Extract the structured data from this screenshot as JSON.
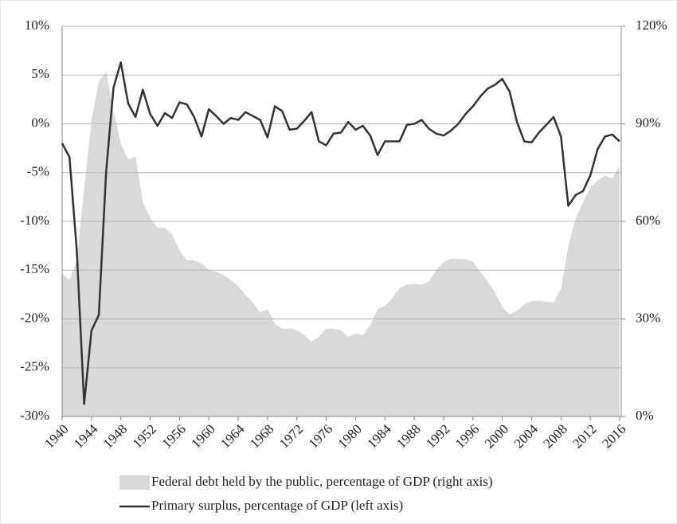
{
  "chart_data": {
    "type": "line",
    "x": [
      1940,
      1941,
      1942,
      1943,
      1944,
      1945,
      1946,
      1947,
      1948,
      1949,
      1950,
      1951,
      1952,
      1953,
      1954,
      1955,
      1956,
      1957,
      1958,
      1959,
      1960,
      1961,
      1962,
      1963,
      1964,
      1965,
      1966,
      1967,
      1968,
      1969,
      1970,
      1971,
      1972,
      1973,
      1974,
      1975,
      1976,
      1977,
      1978,
      1979,
      1980,
      1981,
      1982,
      1983,
      1984,
      1985,
      1986,
      1987,
      1988,
      1989,
      1990,
      1991,
      1992,
      1993,
      1994,
      1995,
      1996,
      1997,
      1998,
      1999,
      2000,
      2001,
      2002,
      2003,
      2004,
      2005,
      2006,
      2007,
      2008,
      2009,
      2010,
      2011,
      2012,
      2013,
      2014,
      2015,
      2016
    ],
    "xlim": [
      1940,
      2016
    ],
    "xticks": [
      1940,
      1944,
      1948,
      1952,
      1956,
      1960,
      1964,
      1968,
      1972,
      1976,
      1980,
      1984,
      1988,
      1992,
      1996,
      2000,
      2004,
      2008,
      2012,
      2016
    ],
    "ylim": [
      -30,
      10
    ],
    "yticks": [
      {
        "value": -30,
        "label": "-30%"
      },
      {
        "value": -25,
        "label": "-25%"
      },
      {
        "value": -20,
        "label": "-20%"
      },
      {
        "value": -15,
        "label": "-15%"
      },
      {
        "value": -10,
        "label": "-10%"
      },
      {
        "value": -5,
        "label": "-5%"
      },
      {
        "value": 0,
        "label": "0%"
      },
      {
        "value": 5,
        "label": "5%"
      },
      {
        "value": 10,
        "label": "10%"
      }
    ],
    "y2lim": [
      0,
      120
    ],
    "y2ticks": [
      {
        "value": 0,
        "label": "0%"
      },
      {
        "value": 30,
        "label": "30%"
      },
      {
        "value": 60,
        "label": "60%"
      },
      {
        "value": 90,
        "label": "90%"
      },
      {
        "value": 120,
        "label": "120%"
      }
    ],
    "grid": true,
    "legend": "bottom",
    "series": [
      {
        "name": "Federal debt held by the public, percentage of GDP (right axis)",
        "color": "#d9d9d9",
        "style": "area",
        "axis": "y2",
        "values": [
          44,
          42,
          48,
          70,
          91,
          103,
          106,
          94,
          84,
          79,
          80,
          66,
          61,
          58,
          58,
          56,
          51,
          48,
          48,
          47,
          45,
          44.5,
          43.5,
          42,
          40,
          37.5,
          35,
          32,
          33,
          28.5,
          27,
          27,
          26.5,
          25,
          23,
          24.5,
          27,
          27,
          26.5,
          24.5,
          25.5,
          25,
          28,
          33,
          34,
          36.5,
          39.5,
          40.6,
          40.8,
          40.5,
          41.5,
          45,
          47.6,
          48.5,
          48.5,
          48.4,
          47.5,
          44.5,
          41.6,
          38.2,
          33.6,
          31.4,
          32.5,
          34.5,
          35.5,
          35.6,
          35.3,
          35.1,
          39.3,
          52.3,
          60.9,
          65.9,
          70.4,
          72.6,
          74.1,
          73.3,
          77
        ]
      },
      {
        "name": "Primary surplus, percentage of GDP (left axis)",
        "color": "#333333",
        "style": "line",
        "values": [
          -2.0,
          -3.4,
          -13.0,
          -28.7,
          -21.2,
          -19.6,
          -4.9,
          3.7,
          6.3,
          2.1,
          0.7,
          3.5,
          1.0,
          -0.2,
          1.1,
          0.6,
          2.2,
          2.0,
          0.7,
          -1.3,
          1.5,
          0.8,
          0.0,
          0.6,
          0.4,
          1.2,
          0.8,
          0.4,
          -1.4,
          1.8,
          1.3,
          -0.6,
          -0.5,
          0.3,
          1.2,
          -1.8,
          -2.2,
          -1.0,
          -0.9,
          0.2,
          -0.6,
          -0.2,
          -1.2,
          -3.2,
          -1.8,
          -1.8,
          -1.8,
          -0.1,
          0.0,
          0.4,
          -0.5,
          -1.0,
          -1.2,
          -0.7,
          0.0,
          1.0,
          1.8,
          2.8,
          3.6,
          4.0,
          4.6,
          3.3,
          0.2,
          -1.8,
          -1.9,
          -0.9,
          -0.1,
          0.7,
          -1.3,
          -8.4,
          -7.3,
          -6.9,
          -5.3,
          -2.6,
          -1.3,
          -1.1,
          -1.8
        ]
      }
    ]
  }
}
